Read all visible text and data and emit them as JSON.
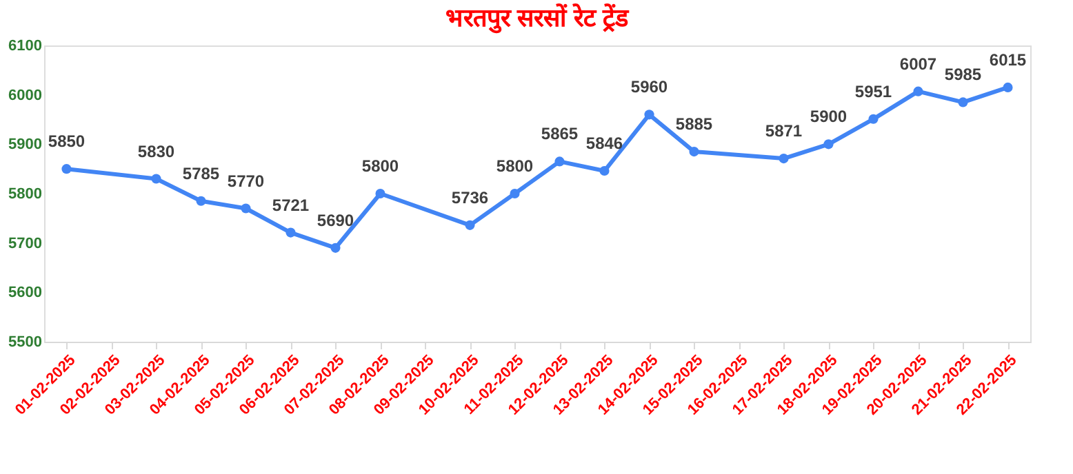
{
  "chart_data": {
    "type": "line",
    "title": "भरतपुर सरसों रेट ट्रेंड",
    "categories": [
      "01-02-2025",
      "02-02-2025",
      "03-02-2025",
      "04-02-2025",
      "05-02-2025",
      "06-02-2025",
      "07-02-2025",
      "08-02-2025",
      "09-02-2025",
      "10-02-2025",
      "11-02-2025",
      "12-02-2025",
      "13-02-2025",
      "14-02-2025",
      "15-02-2025",
      "16-02-2025",
      "17-02-2025",
      "18-02-2025",
      "19-02-2025",
      "20-02-2025",
      "21-02-2025",
      "22-02-2025"
    ],
    "series": [
      {
        "color": "#4285f4",
        "values": [
          5850,
          null,
          5830,
          5785,
          5770,
          5721,
          5690,
          5800,
          null,
          5736,
          5800,
          5865,
          5846,
          5960,
          5885,
          null,
          5871,
          5900,
          5951,
          6007,
          5985,
          6015
        ]
      }
    ],
    "ylim": [
      5500,
      6100
    ],
    "yticks": [
      5500,
      5600,
      5700,
      5800,
      5900,
      6000,
      6100
    ],
    "grid": false,
    "marker": "circle",
    "data_labels": true,
    "line_style": "solid"
  }
}
